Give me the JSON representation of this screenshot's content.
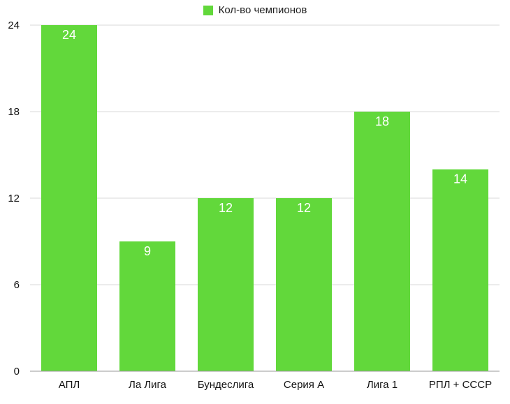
{
  "colors": {
    "bar": "#62D83B",
    "grid": "#d8d8d8",
    "axis": "#999999"
  },
  "chart_data": {
    "type": "bar",
    "categories": [
      "АПЛ",
      "Ла Лига",
      "Бундеслига",
      "Серия А",
      "Лига 1",
      "РПЛ + СССР"
    ],
    "series": [
      {
        "name": "Кол-во чемпионов",
        "values": [
          24,
          9,
          12,
          12,
          18,
          14
        ]
      }
    ],
    "data_labels": [
      "24",
      "9",
      "12",
      "12",
      "18",
      "14"
    ],
    "y_ticks": [
      0,
      6,
      12,
      18,
      24
    ],
    "y_tick_labels": [
      "0",
      "6",
      "12",
      "18",
      "24"
    ],
    "ylim": [
      0,
      24
    ],
    "grid": true,
    "legend_position": "top-center",
    "title": "",
    "xlabel": "",
    "ylabel": ""
  }
}
